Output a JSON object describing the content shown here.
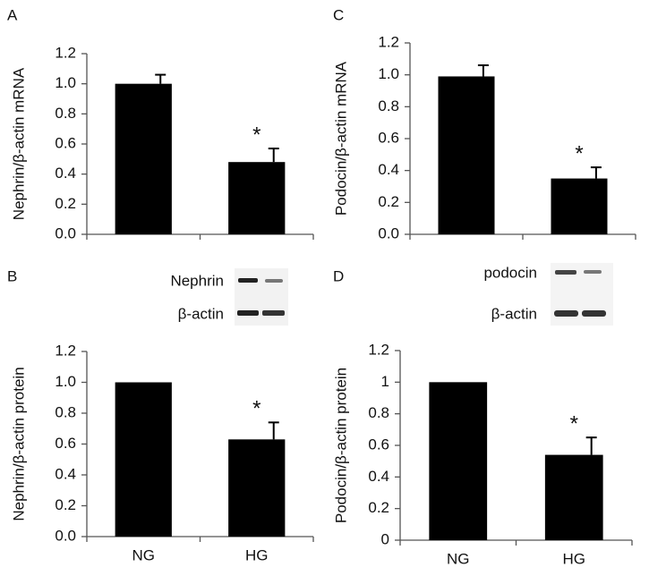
{
  "chart_data": [
    {
      "type": "bar",
      "panel": "A",
      "ylabel": "Nephrin/β-actin mRNA",
      "categories": [
        null,
        null
      ],
      "values": [
        1.0,
        0.48
      ],
      "errors": [
        0.06,
        0.09
      ],
      "markers": [
        null,
        "*"
      ],
      "color": "#000000",
      "ylim": [
        0,
        1.2
      ],
      "yticks": [
        {
          "value": 0,
          "label": "0.0"
        },
        0.2,
        0.4,
        0.6,
        0.8,
        {
          "value": 1,
          "label": "1.0"
        },
        1.2
      ]
    },
    {
      "type": "bar",
      "panel": "C",
      "ylabel": "Podocin/β-actin mRNA",
      "categories": [
        null,
        null
      ],
      "values": [
        0.99,
        0.35
      ],
      "errors": [
        0.07,
        0.07
      ],
      "markers": [
        null,
        "*"
      ],
      "color": "#000000",
      "ylim": [
        0,
        1.2
      ],
      "yticks": [
        {
          "value": 0,
          "label": "0.0"
        },
        0.2,
        0.4,
        0.6,
        0.8,
        {
          "value": 1,
          "label": "1.0"
        },
        1.2
      ]
    },
    {
      "type": "bar",
      "panel": "B",
      "ylabel": "Nephrin/β-actin protein",
      "categories": [
        "NG",
        "HG"
      ],
      "values": [
        1.0,
        0.63
      ],
      "errors": [
        null,
        0.11
      ],
      "markers": [
        null,
        "*"
      ],
      "color": "#000000",
      "blot_labels": [
        "Nephrin",
        "β-actin"
      ],
      "ylim": [
        0,
        1.2
      ],
      "yticks": [
        {
          "value": 0,
          "label": "0.0"
        },
        0.2,
        0.4,
        0.6,
        0.8,
        {
          "value": 1,
          "label": "1.0"
        },
        1.2
      ]
    },
    {
      "type": "bar",
      "panel": "D",
      "ylabel": "Podocin/β-actin protein",
      "categories": [
        "NG",
        "HG"
      ],
      "values": [
        1.0,
        0.54
      ],
      "errors": [
        null,
        0.11
      ],
      "markers": [
        null,
        "*"
      ],
      "color": "#000000",
      "blot_labels": [
        "podocin",
        "β-actin"
      ],
      "ylim": [
        0,
        1.2
      ],
      "yticks": [
        0,
        0.2,
        0.4,
        0.6,
        0.8,
        1,
        1.2
      ]
    }
  ]
}
